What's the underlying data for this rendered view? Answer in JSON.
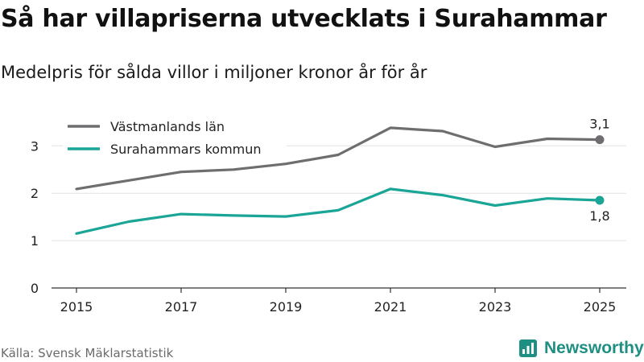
{
  "title": "Så har villapriserna utvecklats i Surahammar",
  "subtitle": "Medelpris för sålda villor i miljoner kronor år för år",
  "source": "Källa: Svensk Mäklarstatistik",
  "brand": {
    "name": "Newsworthy",
    "logo_icon": "newsworthy-logo-icon",
    "color": "#1f8f84"
  },
  "chart_data": {
    "type": "line",
    "title": "Så har villapriserna utvecklats i Surahammar",
    "subtitle": "Medelpris för sålda villor i miljoner kronor år för år",
    "x": [
      2015,
      2016,
      2017,
      2018,
      2019,
      2020,
      2021,
      2022,
      2023,
      2024,
      2025
    ],
    "x_tick_labels": [
      "2015",
      "2017",
      "2019",
      "2021",
      "2023",
      "2025"
    ],
    "y_tick_labels": [
      "0",
      "1",
      "2",
      "3"
    ],
    "ylim": [
      0,
      3.6
    ],
    "grid": "horizontal",
    "legend_position": "top-left",
    "series": [
      {
        "name": "Västmanlands län",
        "color": "#6f6d70",
        "values": [
          2.09,
          2.27,
          2.45,
          2.5,
          2.62,
          2.81,
          3.38,
          3.31,
          2.98,
          3.15,
          3.13
        ],
        "end_label": "3,1"
      },
      {
        "name": "Surahammars kommun",
        "color": "#1aa596",
        "values": [
          1.15,
          1.4,
          1.56,
          1.53,
          1.51,
          1.64,
          2.09,
          1.96,
          1.74,
          1.89,
          1.85
        ],
        "end_label": "1,8"
      }
    ]
  }
}
